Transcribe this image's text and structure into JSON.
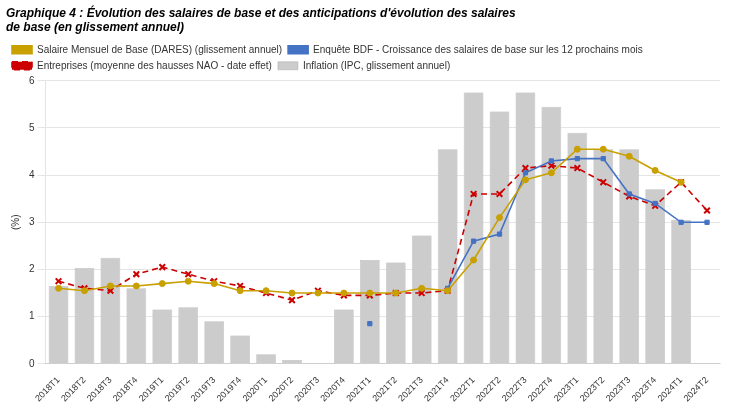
{
  "chart_data": {
    "type": "bar",
    "title": [
      "Graphique 4 : Évolution des salaires de base et des anticipations d'évolution des salaires",
      "de base (en glissement annuel)"
    ],
    "y_label": "(%)",
    "categories": [
      "2018T1",
      "2018T2",
      "2018T3",
      "2018T4",
      "2019T1",
      "2019T2",
      "2019T3",
      "2019T4",
      "2020T1",
      "2020T2",
      "2020T3",
      "2020T4",
      "2021T1",
      "2021T2",
      "2021T3",
      "2021T4",
      "2022T1",
      "2022T2",
      "2022T3",
      "2022T4",
      "2023T1",
      "2023T2",
      "2023T3",
      "2023T4",
      "2024T1",
      "2024T2"
    ],
    "ylim": [
      0,
      6
    ],
    "yticks": [
      0,
      1,
      2,
      3,
      4,
      5,
      6
    ],
    "grid": "y",
    "legend": "upper left",
    "series": [
      {
        "name": "Inflation (IPC, glissement annuel)",
        "type": "bar",
        "color": "#cccccc",
        "values": [
          1.65,
          2.03,
          2.25,
          1.6,
          1.15,
          1.2,
          0.9,
          0.6,
          0.2,
          0.08,
          0.0,
          1.15,
          2.2,
          2.15,
          2.72,
          4.55,
          5.75,
          5.35,
          5.75,
          5.45,
          4.9,
          4.55,
          4.55,
          3.7,
          3.05,
          null
        ]
      },
      {
        "name": "Salaire Mensuel de Base (DARES) (glissement annuel)",
        "type": "line",
        "color": "#c8a000",
        "marker": "circle",
        "line_style": "solid",
        "values": [
          1.6,
          1.55,
          1.65,
          1.65,
          1.7,
          1.75,
          1.7,
          1.55,
          1.55,
          1.5,
          1.5,
          1.5,
          1.5,
          1.5,
          1.6,
          1.55,
          2.2,
          3.1,
          3.9,
          4.05,
          4.55,
          4.55,
          4.4,
          4.1,
          3.85,
          null
        ]
      },
      {
        "name": "Enquête BDF - Croissance des salaires de base sur les 12 prochains mois",
        "type": "line",
        "color": "#4472c4",
        "marker": "square",
        "line_style": "solid",
        "values": [
          null,
          null,
          null,
          null,
          null,
          null,
          null,
          null,
          null,
          null,
          null,
          null,
          0.85,
          null,
          null,
          1.6,
          2.6,
          2.75,
          4.05,
          4.3,
          4.35,
          4.35,
          3.6,
          3.4,
          3.0,
          3.0
        ]
      },
      {
        "name": "Entreprises (moyenne des hausses NAO - date effet)",
        "type": "line",
        "color": "#cc0000",
        "marker": "x",
        "line_style": "dashed",
        "values": [
          1.75,
          1.6,
          1.55,
          1.9,
          2.05,
          1.9,
          1.75,
          1.65,
          1.5,
          1.35,
          1.55,
          1.45,
          1.45,
          1.5,
          1.5,
          1.55,
          3.6,
          3.6,
          4.15,
          4.2,
          4.15,
          3.85,
          3.55,
          3.35,
          3.85,
          3.25
        ]
      }
    ]
  }
}
